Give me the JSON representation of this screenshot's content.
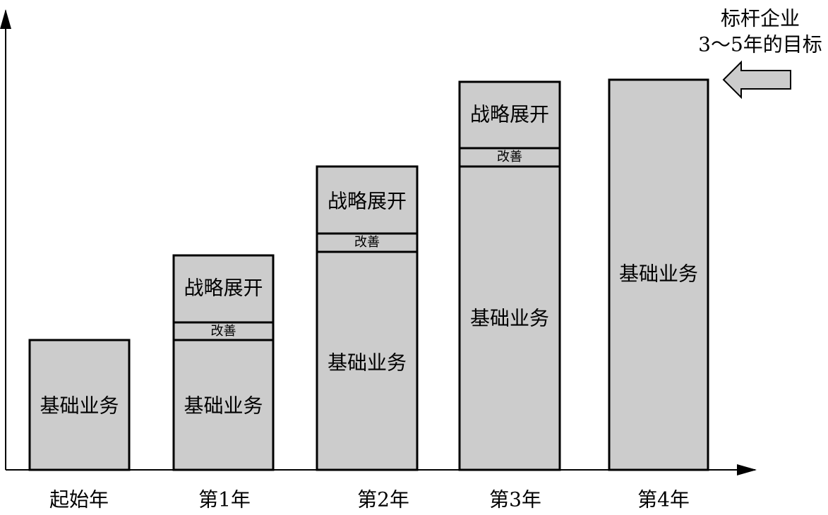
{
  "columns": [
    {
      "label": "起始年",
      "segments": [
        {
          "label": "基础业务"
        }
      ]
    },
    {
      "label": "第1年",
      "segments": [
        {
          "label": "基础业务"
        },
        {
          "label": "改善"
        },
        {
          "label": "战略展开"
        }
      ]
    },
    {
      "label": "第2年",
      "segments": [
        {
          "label": "基础业务"
        },
        {
          "label": "改善"
        },
        {
          "label": "战略展开"
        }
      ]
    },
    {
      "label": "第3年",
      "segments": [
        {
          "label": "基础业务"
        },
        {
          "label": "改善"
        },
        {
          "label": "战略展开"
        }
      ]
    },
    {
      "label": "第4年",
      "segments": [
        {
          "label": "基础业务"
        }
      ]
    }
  ],
  "annotation": {
    "lines": [
      "标杆企业",
      "3～5年的目标"
    ]
  }
}
